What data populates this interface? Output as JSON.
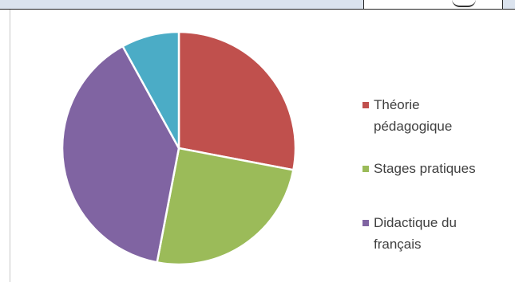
{
  "chart_data": {
    "type": "pie",
    "title": "",
    "series": [
      {
        "values": [
          28,
          25,
          39,
          8
        ],
        "labels": [
          "Théorie pédagogique",
          "Stages pratiques",
          "Didactique du français",
          ""
        ],
        "colors": [
          "#c0504d",
          "#9bbb59",
          "#8064a2",
          "#4bacc6"
        ]
      }
    ],
    "legend": {
      "placement": "right",
      "entries": [
        {
          "label": "Théorie",
          "label_line2": "pédagogique",
          "color": "#c0504d"
        },
        {
          "label": "Stages pratiques",
          "label_line2": "",
          "color": "#9bbb59"
        },
        {
          "label": "Didactique du",
          "label_line2": "français",
          "color": "#8064a2"
        }
      ]
    }
  }
}
